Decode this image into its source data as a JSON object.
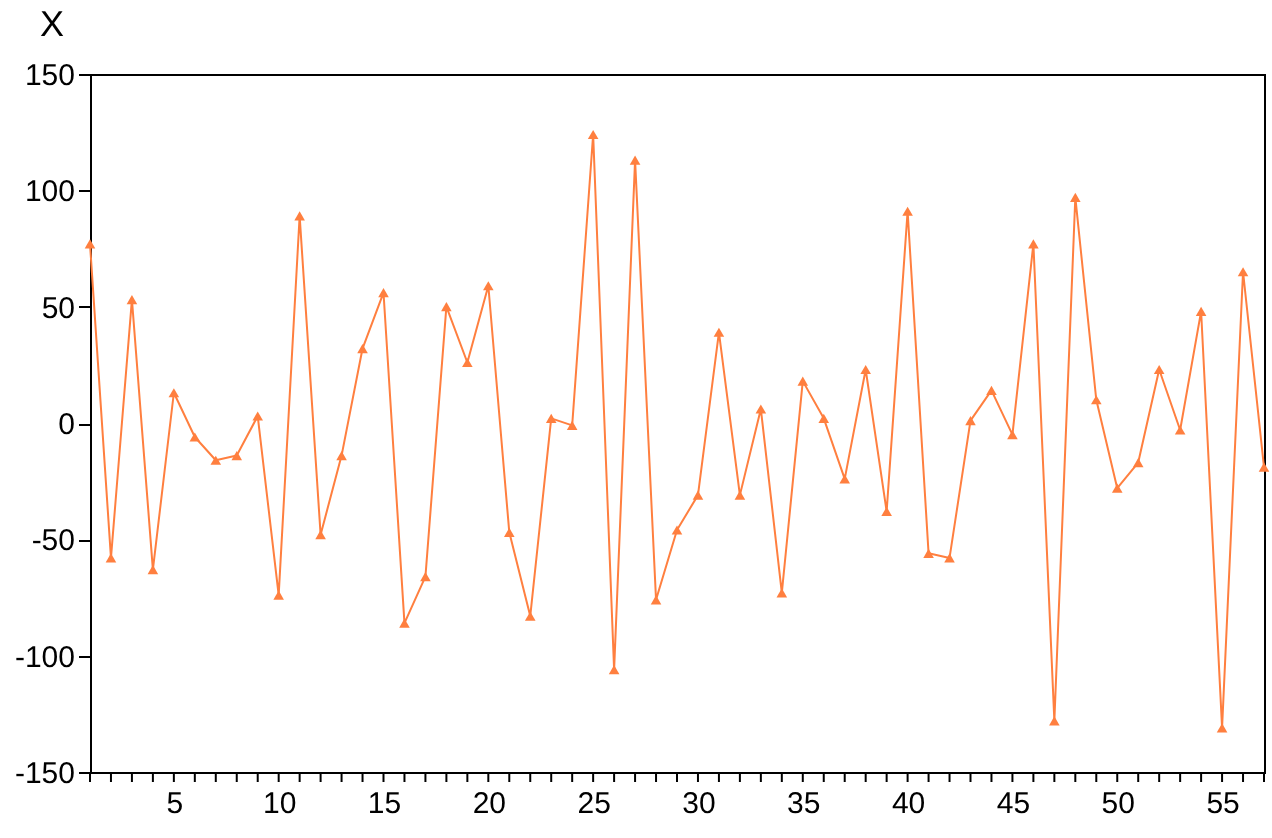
{
  "chart_data": {
    "type": "line",
    "title": "X",
    "x": [
      1,
      2,
      3,
      4,
      5,
      6,
      7,
      8,
      9,
      10,
      11,
      12,
      13,
      14,
      15,
      16,
      17,
      18,
      19,
      20,
      21,
      22,
      23,
      24,
      25,
      26,
      27,
      28,
      29,
      30,
      31,
      32,
      33,
      34,
      35,
      36,
      37,
      38,
      39,
      40,
      41,
      42,
      43,
      44,
      45,
      46,
      47,
      48,
      49,
      50,
      51,
      52,
      53,
      54,
      55,
      56,
      57
    ],
    "series": [
      {
        "color": "#ff7f3f",
        "values": [
          77,
          -58,
          53,
          -63,
          13,
          -6,
          -16,
          -14,
          3,
          -74,
          89,
          -48,
          -14,
          32,
          56,
          -86,
          -66,
          50,
          26,
          59,
          -47,
          -83,
          2,
          -1,
          124,
          -106,
          113,
          -76,
          -46,
          -31,
          39,
          -31,
          6,
          -73,
          18,
          2,
          -24,
          23,
          -38,
          91,
          -56,
          -58,
          1,
          14,
          -5,
          77,
          -128,
          97,
          10,
          -28,
          -17,
          23,
          -3,
          48,
          -131,
          65,
          -19
        ]
      }
    ],
    "xlim": [
      1,
      57
    ],
    "xticks": [
      {
        "value": 1,
        "label": null
      },
      {
        "value": 2,
        "label": null
      },
      {
        "value": 3,
        "label": null
      },
      {
        "value": 4,
        "label": null
      },
      5,
      {
        "value": 6,
        "label": null
      },
      {
        "value": 7,
        "label": null
      },
      {
        "value": 8,
        "label": null
      },
      {
        "value": 9,
        "label": null
      },
      10,
      {
        "value": 11,
        "label": null
      },
      {
        "value": 12,
        "label": null
      },
      {
        "value": 13,
        "label": null
      },
      {
        "value": 14,
        "label": null
      },
      15,
      {
        "value": 16,
        "label": null
      },
      {
        "value": 17,
        "label": null
      },
      {
        "value": 18,
        "label": null
      },
      {
        "value": 19,
        "label": null
      },
      20,
      {
        "value": 21,
        "label": null
      },
      {
        "value": 22,
        "label": null
      },
      {
        "value": 23,
        "label": null
      },
      {
        "value": 24,
        "label": null
      },
      25,
      {
        "value": 26,
        "label": null
      },
      {
        "value": 27,
        "label": null
      },
      {
        "value": 28,
        "label": null
      },
      {
        "value": 29,
        "label": null
      },
      30,
      {
        "value": 31,
        "label": null
      },
      {
        "value": 32,
        "label": null
      },
      {
        "value": 33,
        "label": null
      },
      {
        "value": 34,
        "label": null
      },
      35,
      {
        "value": 36,
        "label": null
      },
      {
        "value": 37,
        "label": null
      },
      {
        "value": 38,
        "label": null
      },
      {
        "value": 39,
        "label": null
      },
      40,
      {
        "value": 41,
        "label": null
      },
      {
        "value": 42,
        "label": null
      },
      {
        "value": 43,
        "label": null
      },
      {
        "value": 44,
        "label": null
      },
      45,
      {
        "value": 46,
        "label": null
      },
      {
        "value": 47,
        "label": null
      },
      {
        "value": 48,
        "label": null
      },
      {
        "value": 49,
        "label": null
      },
      50,
      {
        "value": 51,
        "label": null
      },
      {
        "value": 52,
        "label": null
      },
      {
        "value": 53,
        "label": null
      },
      {
        "value": 54,
        "label": null
      },
      55,
      {
        "value": 56,
        "label": null
      },
      {
        "value": 57,
        "label": null
      }
    ],
    "ylim": [
      -150,
      150
    ],
    "yticks": [
      -150,
      -100,
      -50,
      0,
      50,
      100,
      150
    ],
    "grid": false,
    "marker": "triangle",
    "line_style": "solid"
  }
}
